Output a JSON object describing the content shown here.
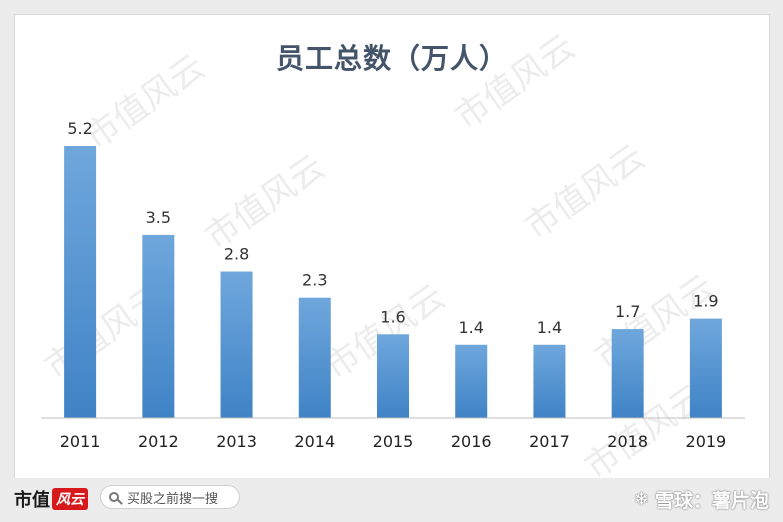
{
  "chart_data": {
    "type": "bar",
    "title": "员工总数（万人）",
    "categories": [
      "2011",
      "2012",
      "2013",
      "2014",
      "2015",
      "2016",
      "2017",
      "2018",
      "2019"
    ],
    "values": [
      5.2,
      3.5,
      2.8,
      2.3,
      1.6,
      1.4,
      1.4,
      1.7,
      1.9
    ],
    "value_labels": [
      "5.2",
      "3.5",
      "2.8",
      "2.3",
      "1.6",
      "1.4",
      "1.4",
      "1.7",
      "1.9"
    ],
    "xlabel": "",
    "ylabel": "",
    "ylim": [
      0,
      5.2
    ],
    "grid": false,
    "legend": "none",
    "bar_color_top": "#6fa7dc",
    "bar_color_bottom": "#3f83c6"
  },
  "watermark": "市值风云",
  "footer": {
    "brand_text": "市值",
    "brand_mark": "风云",
    "search_text": "买股之前搜一搜",
    "platform": "雪球：薯片泡"
  }
}
